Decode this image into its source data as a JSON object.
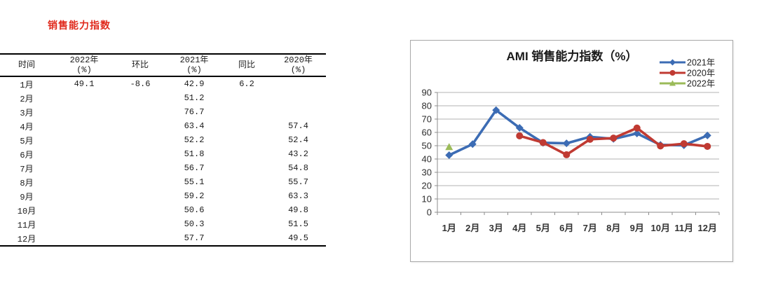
{
  "page": {
    "title": "销售能力指数",
    "title_color": "#e02a1d"
  },
  "table": {
    "columns": [
      {
        "line1": "时间",
        "line2": ""
      },
      {
        "line1": "2022年",
        "line2": "(%)"
      },
      {
        "line1": "环比",
        "line2": ""
      },
      {
        "line1": "2021年",
        "line2": "(%)"
      },
      {
        "line1": "同比",
        "line2": ""
      },
      {
        "line1": "2020年",
        "line2": "(%)"
      }
    ],
    "rows": [
      [
        "1月",
        "49.1",
        "-8.6",
        "42.9",
        "6.2",
        ""
      ],
      [
        "2月",
        "",
        "",
        "51.2",
        "",
        ""
      ],
      [
        "3月",
        "",
        "",
        "76.7",
        "",
        ""
      ],
      [
        "4月",
        "",
        "",
        "63.4",
        "",
        "57.4"
      ],
      [
        "5月",
        "",
        "",
        "52.2",
        "",
        "52.4"
      ],
      [
        "6月",
        "",
        "",
        "51.8",
        "",
        "43.2"
      ],
      [
        "7月",
        "",
        "",
        "56.7",
        "",
        "54.8"
      ],
      [
        "8月",
        "",
        "",
        "55.1",
        "",
        "55.7"
      ],
      [
        "9月",
        "",
        "",
        "59.2",
        "",
        "63.3"
      ],
      [
        "10月",
        "",
        "",
        "50.6",
        "",
        "49.8"
      ],
      [
        "11月",
        "",
        "",
        "50.3",
        "",
        "51.5"
      ],
      [
        "12月",
        "",
        "",
        "57.7",
        "",
        "49.5"
      ]
    ]
  },
  "chart_data": {
    "type": "line",
    "title": "AMI 销售能力指数（%）",
    "xlabel": "",
    "ylabel": "",
    "categories": [
      "1月",
      "2月",
      "3月",
      "4月",
      "5月",
      "6月",
      "7月",
      "8月",
      "9月",
      "10月",
      "11月",
      "12月"
    ],
    "series": [
      {
        "name": "2021年",
        "color": "#3c6cb4",
        "marker": "diamond",
        "values": [
          42.9,
          51.2,
          76.7,
          63.4,
          52.2,
          51.8,
          56.7,
          55.1,
          59.2,
          50.6,
          50.3,
          57.7
        ]
      },
      {
        "name": "2020年",
        "color": "#c03a32",
        "marker": "circle",
        "values": [
          null,
          null,
          null,
          57.4,
          52.4,
          43.2,
          54.8,
          55.7,
          63.3,
          49.8,
          51.5,
          49.5
        ]
      },
      {
        "name": "2022年",
        "color": "#9bbb59",
        "marker": "triangle",
        "values": [
          49.1,
          null,
          null,
          null,
          null,
          null,
          null,
          null,
          null,
          null,
          null,
          null
        ]
      }
    ],
    "ylim": [
      0,
      90
    ],
    "ytick_step": 10,
    "grid": true,
    "legend_position": "top-right",
    "grid_color": "#b3b3b3",
    "axis_color": "#8c8c8c",
    "text_color": "#333333"
  }
}
